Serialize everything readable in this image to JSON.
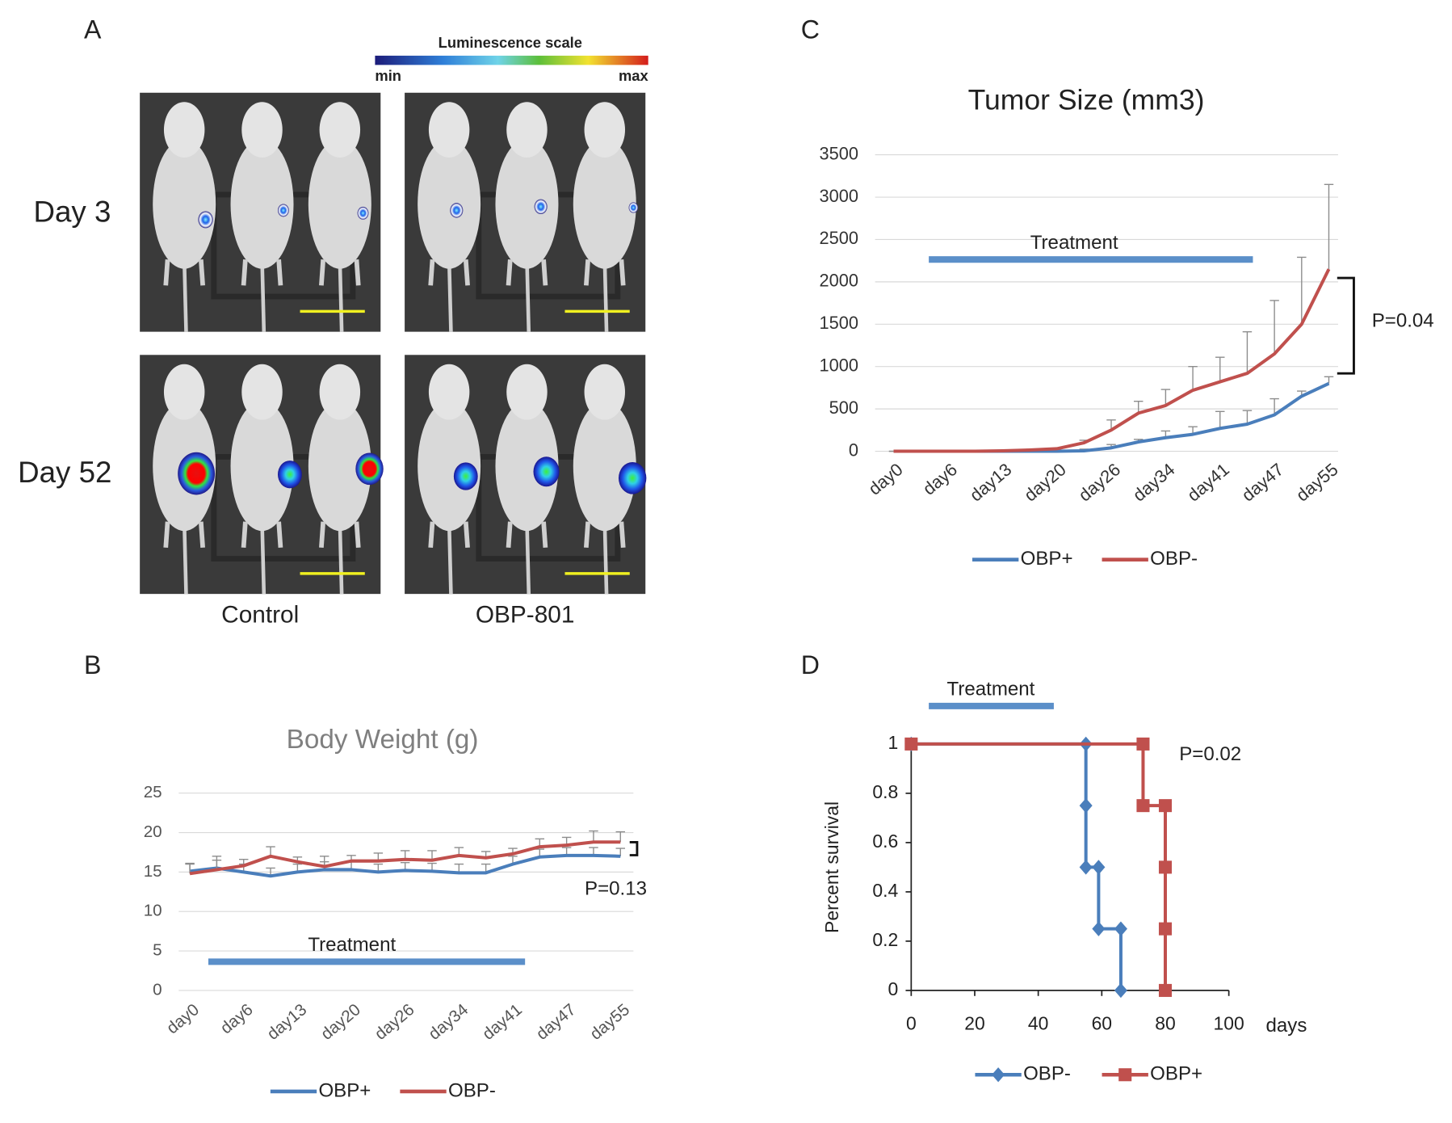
{
  "panel_labels": [
    "A",
    "B",
    "C",
    "D"
  ],
  "panel_a": {
    "scale_title": "Luminescence scale",
    "scale_min": "min",
    "scale_max": "max",
    "rows": [
      "Day 3",
      "Day 52"
    ],
    "columns": [
      "Control",
      "OBP-801"
    ]
  },
  "chart_data": [
    {
      "type": "line",
      "title": "Body Weight (g)",
      "categories": [
        "day0",
        null,
        "day6",
        null,
        "day13",
        null,
        "day20",
        null,
        "day26",
        null,
        "day34",
        null,
        "day41",
        null,
        "day47",
        null,
        "day55"
      ],
      "ylim": [
        0,
        25
      ],
      "yticks": [
        0,
        5,
        10,
        15,
        20,
        25
      ],
      "grid": true,
      "series": [
        {
          "name": "OBP+",
          "color": "#4a7ebb",
          "values": [
            15.1,
            15.5,
            15.0,
            14.5,
            15.0,
            15.3,
            15.3,
            15.0,
            15.2,
            15.1,
            14.9,
            14.9,
            16.0,
            16.9,
            17.1,
            17.1,
            17.0
          ],
          "errors": [
            1.0,
            1.0,
            1.0,
            1.0,
            1.0,
            1.0,
            1.0,
            1.0,
            1.0,
            1.0,
            1.1,
            1.1,
            1.0,
            1.0,
            1.0,
            1.0,
            1.0
          ]
        },
        {
          "name": "OBP-",
          "color": "#c0504d",
          "values": [
            14.8,
            15.3,
            15.8,
            17.0,
            16.3,
            15.7,
            16.4,
            16.4,
            16.6,
            16.5,
            17.1,
            16.8,
            17.3,
            18.2,
            18.4,
            18.8,
            18.8
          ],
          "errors": [
            1.2,
            1.7,
            0.8,
            1.2,
            0.6,
            1.3,
            0.7,
            1.0,
            1.1,
            1.2,
            1.0,
            0.8,
            0.7,
            1.0,
            1.0,
            1.4,
            1.3
          ]
        }
      ],
      "annotations": {
        "treatment": "Treatment",
        "p_value": "P=0.13"
      }
    },
    {
      "type": "line",
      "title": "Tumor Size (mm3)",
      "categories": [
        "day0",
        null,
        "day6",
        null,
        "day13",
        null,
        "day20",
        null,
        "day26",
        null,
        "day34",
        null,
        "day41",
        null,
        "day47",
        null,
        "day55"
      ],
      "ylim": [
        0,
        3500
      ],
      "yticks": [
        0,
        500,
        1000,
        1500,
        2000,
        2500,
        3000,
        3500
      ],
      "grid": true,
      "series": [
        {
          "name": "OBP+",
          "color": "#4a7ebb",
          "values": [
            0,
            0,
            0,
            0,
            0,
            0,
            0,
            5,
            40,
            110,
            160,
            200,
            270,
            320,
            430,
            650,
            800
          ],
          "errors": [
            0,
            0,
            0,
            0,
            0,
            0,
            0,
            20,
            40,
            30,
            80,
            90,
            200,
            160,
            190,
            60,
            80
          ]
        },
        {
          "name": "OBP-",
          "color": "#c0504d",
          "values": [
            0,
            0,
            0,
            0,
            5,
            15,
            30,
            100,
            250,
            450,
            540,
            720,
            820,
            920,
            1150,
            1500,
            2150
          ],
          "errors": [
            0,
            0,
            0,
            0,
            0,
            0,
            0,
            30,
            120,
            140,
            190,
            280,
            290,
            490,
            630,
            790,
            1000
          ]
        }
      ],
      "annotations": {
        "treatment": "Treatment",
        "p_value": "P=0.04"
      }
    },
    {
      "type": "line",
      "xlabel": "days",
      "ylabel": "Percent survival",
      "xlim": [
        0,
        100
      ],
      "xticks": [
        0,
        20,
        40,
        60,
        80,
        100
      ],
      "ylim": [
        0,
        1
      ],
      "yticks": [
        0,
        0.2,
        0.4,
        0.6,
        0.8,
        1
      ],
      "grid": false,
      "series": [
        {
          "name": "OBP-",
          "color": "#4a7ebb",
          "marker": "diamond",
          "x": [
            0,
            55,
            55,
            55,
            59,
            59,
            66,
            66
          ],
          "values": [
            1,
            1,
            0.75,
            0.5,
            0.5,
            0.25,
            0.25,
            0
          ]
        },
        {
          "name": "OBP+",
          "color": "#c0504d",
          "marker": "square",
          "x": [
            0,
            73,
            73,
            80,
            80,
            80,
            80
          ],
          "values": [
            1,
            1,
            0.75,
            0.75,
            0.5,
            0.25,
            0
          ]
        }
      ],
      "annotations": {
        "treatment": "Treatment",
        "p_value": "P=0.02"
      }
    }
  ]
}
